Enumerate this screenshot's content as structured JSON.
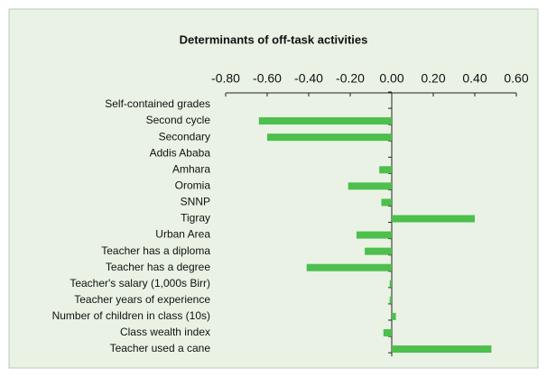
{
  "chart_data": {
    "type": "bar",
    "orientation": "horizontal",
    "title": "Determinants of off-task activities",
    "categories": [
      "Self-contained grades",
      "Second cycle",
      "Secondary",
      "Addis Ababa",
      "Amhara",
      "Oromia",
      "SNNP",
      "Tigray",
      "Urban Area",
      "Teacher has a diploma",
      "Teacher has a degree",
      "Teacher's salary  (1,000s Birr)",
      "Teacher years of experience",
      "Number of children in class (10s)",
      "Class wealth index",
      "Teacher used a cane"
    ],
    "values": [
      0,
      -0.64,
      -0.6,
      0,
      -0.06,
      -0.21,
      -0.05,
      0.4,
      -0.17,
      -0.13,
      -0.41,
      -0.01,
      -0.01,
      0.02,
      -0.04,
      0.48
    ],
    "color": "#4cbf4c",
    "xlim": [
      -0.8,
      0.6
    ],
    "xticks": [
      {
        "value": -0.8,
        "label": "-0.80"
      },
      {
        "value": -0.6,
        "label": "-0.60"
      },
      {
        "value": -0.4,
        "label": "-0.40"
      },
      {
        "value": -0.2,
        "label": "-0.20"
      },
      {
        "value": 0,
        "label": "0.00"
      },
      {
        "value": 0.2,
        "label": "0.20"
      },
      {
        "value": 0.4,
        "label": "0.40"
      },
      {
        "value": 0.6,
        "label": "0.60"
      }
    ]
  }
}
